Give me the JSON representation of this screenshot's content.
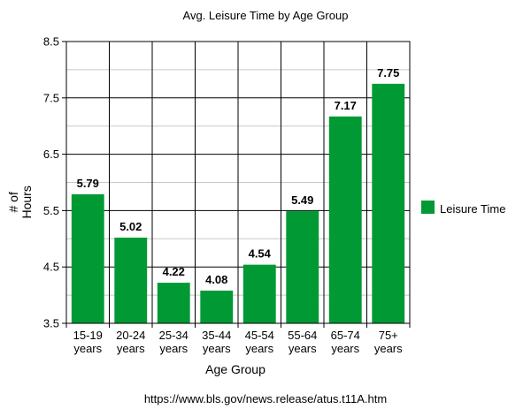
{
  "chart_data": {
    "type": "bar",
    "title": "Avg. Leisure Time by Age Group",
    "xlabel": "Age Group",
    "ylabel": "# of Hours",
    "ylabel_lines": [
      "# of",
      "Hours"
    ],
    "categories": [
      [
        "15-19",
        "years"
      ],
      [
        "20-24",
        "years"
      ],
      [
        "25-34",
        "years"
      ],
      [
        "35-44",
        "years"
      ],
      [
        "45-54",
        "years"
      ],
      [
        "55-64",
        "years"
      ],
      [
        "65-74",
        "years"
      ],
      [
        "75+",
        "years"
      ]
    ],
    "series": [
      {
        "name": "Leisure Time",
        "values": [
          5.79,
          5.02,
          4.22,
          4.08,
          4.54,
          5.49,
          7.17,
          7.75
        ],
        "value_labels": [
          "5.79",
          "5.02",
          "4.22",
          "4.08",
          "4.54",
          "5.49",
          "7.17",
          "7.75"
        ],
        "color": "#009933"
      }
    ],
    "ylim": [
      3.5,
      8.5
    ],
    "yticks": [
      3.5,
      4.5,
      5.5,
      6.5,
      7.5,
      8.5
    ],
    "ytick_labels": [
      "3.5",
      "4.5",
      "5.5",
      "6.5",
      "7.5",
      "8.5"
    ],
    "minor_grid_step": 0.5,
    "grid": true,
    "legend_position": "right"
  },
  "source_text": "https://www.bls.gov/news.release/atus.t11A.htm"
}
